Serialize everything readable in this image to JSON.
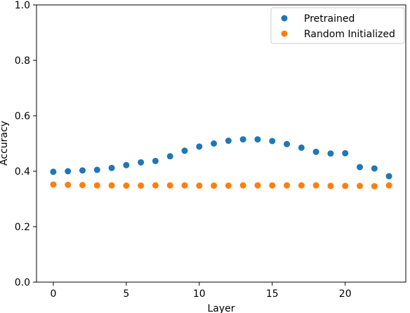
{
  "chart_data": {
    "type": "scatter",
    "title": "",
    "xlabel": "Layer",
    "ylabel": "Accuracy",
    "xlim": [
      -1.15,
      24.15
    ],
    "ylim": [
      0.0,
      1.0
    ],
    "x_ticks": [
      0,
      5,
      10,
      15,
      20
    ],
    "y_ticks": [
      0.0,
      0.2,
      0.4,
      0.6,
      0.8,
      1.0
    ],
    "x_tick_labels": [
      "0",
      "5",
      "10",
      "15",
      "20"
    ],
    "y_tick_labels": [
      "0.0",
      "0.2",
      "0.4",
      "0.6",
      "0.8",
      "1.0"
    ],
    "legend_position": "top-right",
    "grid": false,
    "x": [
      0,
      1,
      2,
      3,
      4,
      5,
      6,
      7,
      8,
      9,
      10,
      11,
      12,
      13,
      14,
      15,
      16,
      17,
      18,
      19,
      20,
      21,
      22,
      23
    ],
    "series": [
      {
        "name": "Pretrained",
        "color": "#1f77b4",
        "values": [
          0.398,
          0.4,
          0.403,
          0.405,
          0.412,
          0.422,
          0.432,
          0.437,
          0.454,
          0.474,
          0.489,
          0.5,
          0.51,
          0.515,
          0.515,
          0.509,
          0.498,
          0.485,
          0.47,
          0.464,
          0.465,
          0.415,
          0.41,
          0.382
        ]
      },
      {
        "name": "Random Initialized",
        "color": "#ff7f0e",
        "values": [
          0.352,
          0.351,
          0.35,
          0.349,
          0.349,
          0.348,
          0.348,
          0.349,
          0.349,
          0.349,
          0.348,
          0.348,
          0.348,
          0.349,
          0.349,
          0.349,
          0.349,
          0.349,
          0.349,
          0.347,
          0.347,
          0.347,
          0.346,
          0.349
        ]
      }
    ]
  }
}
